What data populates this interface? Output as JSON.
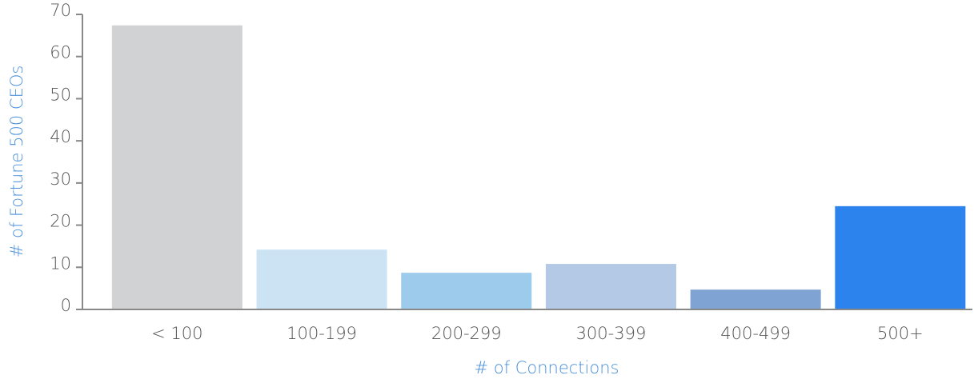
{
  "chart_data": {
    "type": "bar",
    "x_label": "# of Connections",
    "y_label": "# of Fortune 500 CEOs",
    "categories": [
      "< 100",
      "100-199",
      "200-299",
      "300-399",
      "400-499",
      "500+"
    ],
    "values": [
      67.4,
      14.2,
      8.7,
      10.8,
      4.7,
      24.5
    ],
    "colors": [
      "#d1d2d4",
      "#cce3f4",
      "#9ccbec",
      "#b3c9e5",
      "#7fa3d3",
      "#2c83ed"
    ],
    "ylim": [
      0,
      70
    ],
    "yticks": [
      0,
      10,
      20,
      30,
      40,
      50,
      60,
      70
    ],
    "grid": false
  }
}
